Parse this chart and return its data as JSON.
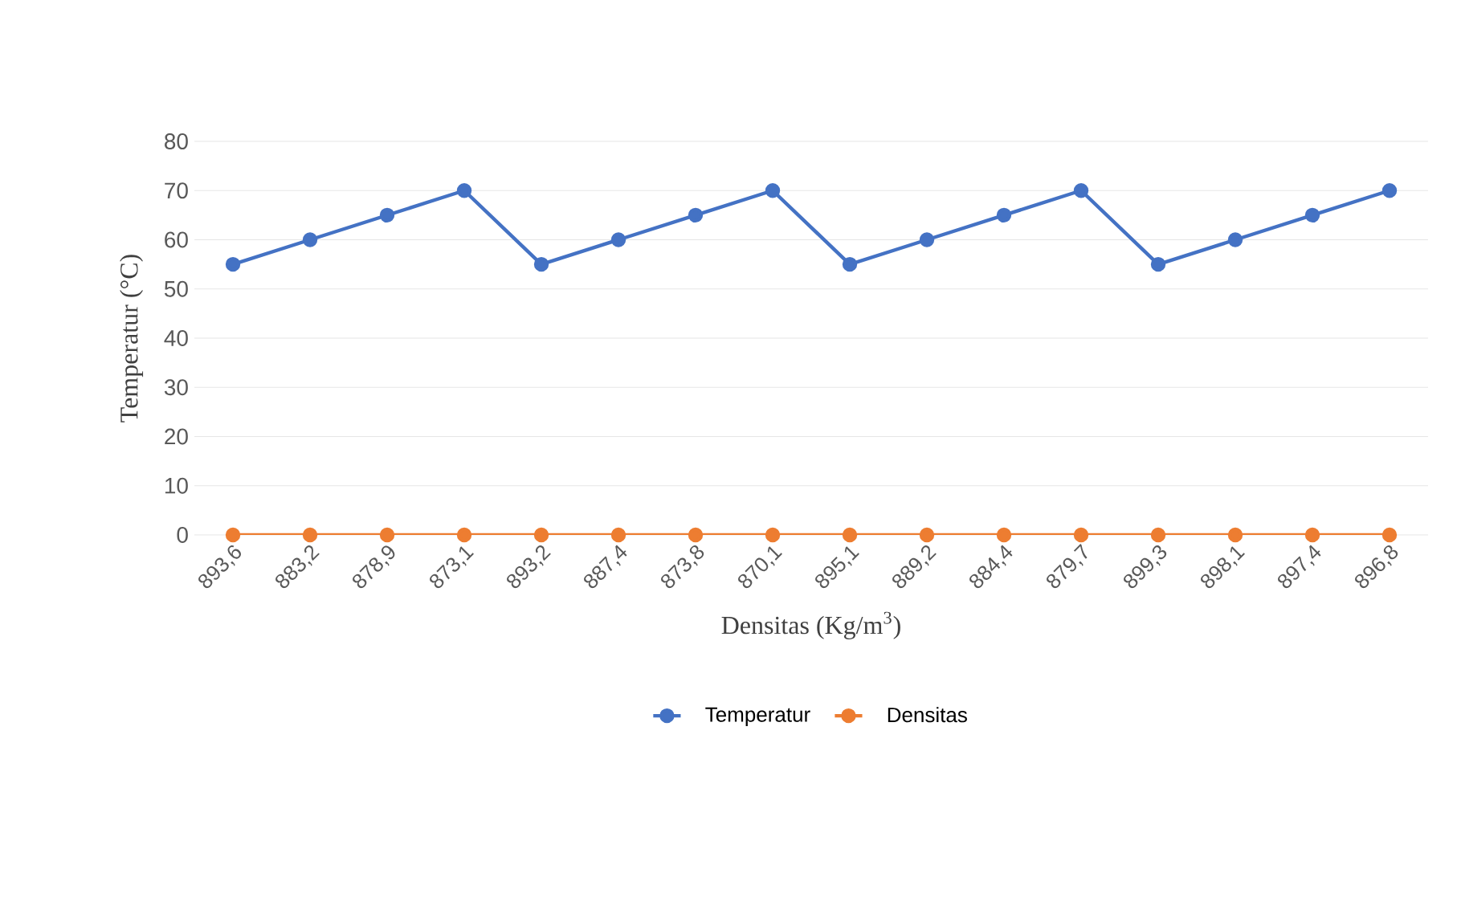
{
  "chart_data": {
    "type": "line",
    "xlabel": "Densitas (Kg/m$^{3}$)",
    "ylabel": "Temperatur (°C)",
    "categories": [
      "893,6",
      "883,2",
      "878,9",
      "873,1",
      "893,2",
      "887,4",
      "873,8",
      "870,1",
      "895,1",
      "889,2",
      "884,4",
      "879,7",
      "899,3",
      "898,1",
      "897,4",
      "896,8"
    ],
    "series": [
      {
        "name": "Temperatur",
        "color": "#4472c4",
        "values": [
          55,
          60,
          65,
          70,
          55,
          60,
          65,
          70,
          55,
          60,
          65,
          70,
          55,
          60,
          65,
          70
        ]
      },
      {
        "name": "Densitas",
        "color": "#ed7d31",
        "values": [
          0,
          0,
          0,
          0,
          0,
          0,
          0,
          0,
          0,
          0,
          0,
          0,
          0,
          0,
          0,
          0
        ]
      }
    ],
    "ylim": [
      0,
      80
    ],
    "yticks": [
      0,
      10,
      20,
      30,
      40,
      50,
      60,
      70,
      80
    ],
    "grid": "y",
    "legend": "bottom",
    "marker": "circle",
    "line_style": "solid"
  }
}
